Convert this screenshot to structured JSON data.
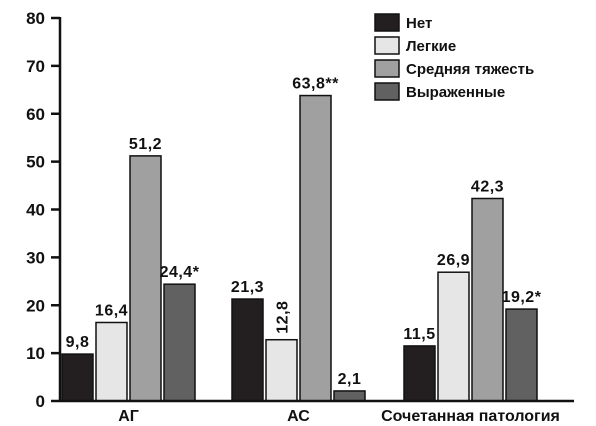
{
  "chart_data": {
    "type": "bar",
    "categories": [
      "АГ",
      "АС",
      "Сочетанная патология"
    ],
    "series": [
      {
        "name": "Нет",
        "color": "#231f20",
        "values": [
          9.8,
          21.3,
          11.5
        ],
        "labels": [
          "9,8",
          "21,3",
          "11,5"
        ]
      },
      {
        "name": "Легкие",
        "color": "#e6e6e6",
        "values": [
          16.4,
          12.8,
          26.9
        ],
        "labels": [
          "16,4",
          "12,8",
          "26,9"
        ]
      },
      {
        "name": "Средняя тяжесть",
        "color": "#a0a0a0",
        "values": [
          51.2,
          63.8,
          42.3
        ],
        "labels": [
          "51,2",
          "63,8**",
          "42,3"
        ]
      },
      {
        "name": "Выраженные",
        "color": "#616161",
        "values": [
          24.4,
          2.1,
          19.2
        ],
        "labels": [
          "24,4*",
          "2,1",
          "19,2*"
        ]
      }
    ],
    "ylim": [
      0,
      80
    ],
    "yticks": [
      "0",
      "10",
      "20",
      "30",
      "40",
      "50",
      "60",
      "70",
      "80"
    ],
    "grid": false,
    "legend": "top-right",
    "xlabel": "",
    "ylabel": ""
  }
}
